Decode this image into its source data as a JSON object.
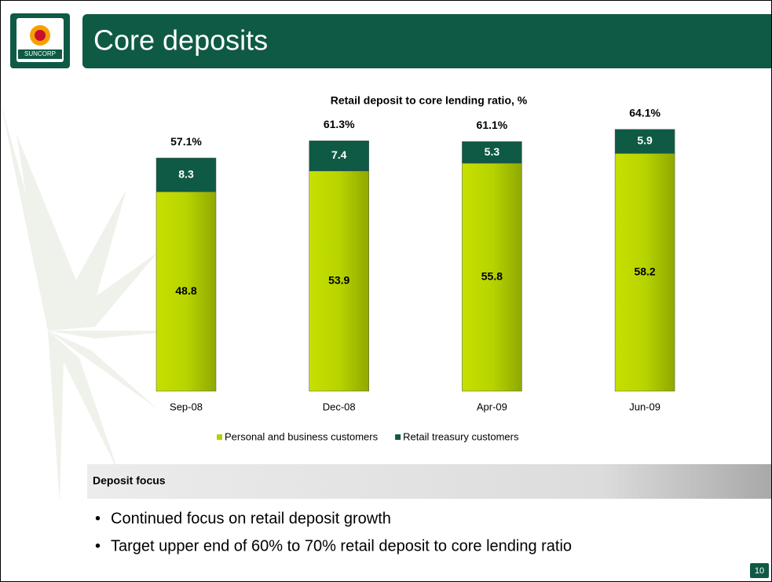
{
  "header": {
    "title": "Core deposits",
    "logo": "SUNCORP"
  },
  "chart_data": {
    "type": "stacked-bar",
    "title": "Retail deposit to core lending ratio, %",
    "categories": [
      "Sep-08",
      "Dec-08",
      "Apr-09",
      "Jun-09"
    ],
    "series": [
      {
        "name": "Personal and business customers",
        "color": "#b3cf00",
        "values": [
          48.8,
          53.9,
          55.8,
          58.2
        ]
      },
      {
        "name": "Retail treasury customers",
        "color": "#0f5a44",
        "values": [
          8.3,
          7.4,
          5.3,
          5.9
        ]
      }
    ],
    "totals": [
      57.1,
      61.3,
      61.1,
      64.1
    ],
    "total_labels": [
      "57.1%",
      "61.3%",
      "61.1%",
      "64.1%"
    ],
    "legend": "bottom"
  },
  "section": {
    "title": "Deposit focus",
    "bullets": [
      "Continued focus on retail deposit growth",
      "Target upper end of 60% to 70% retail deposit to core lending ratio"
    ]
  },
  "page_number": "10"
}
